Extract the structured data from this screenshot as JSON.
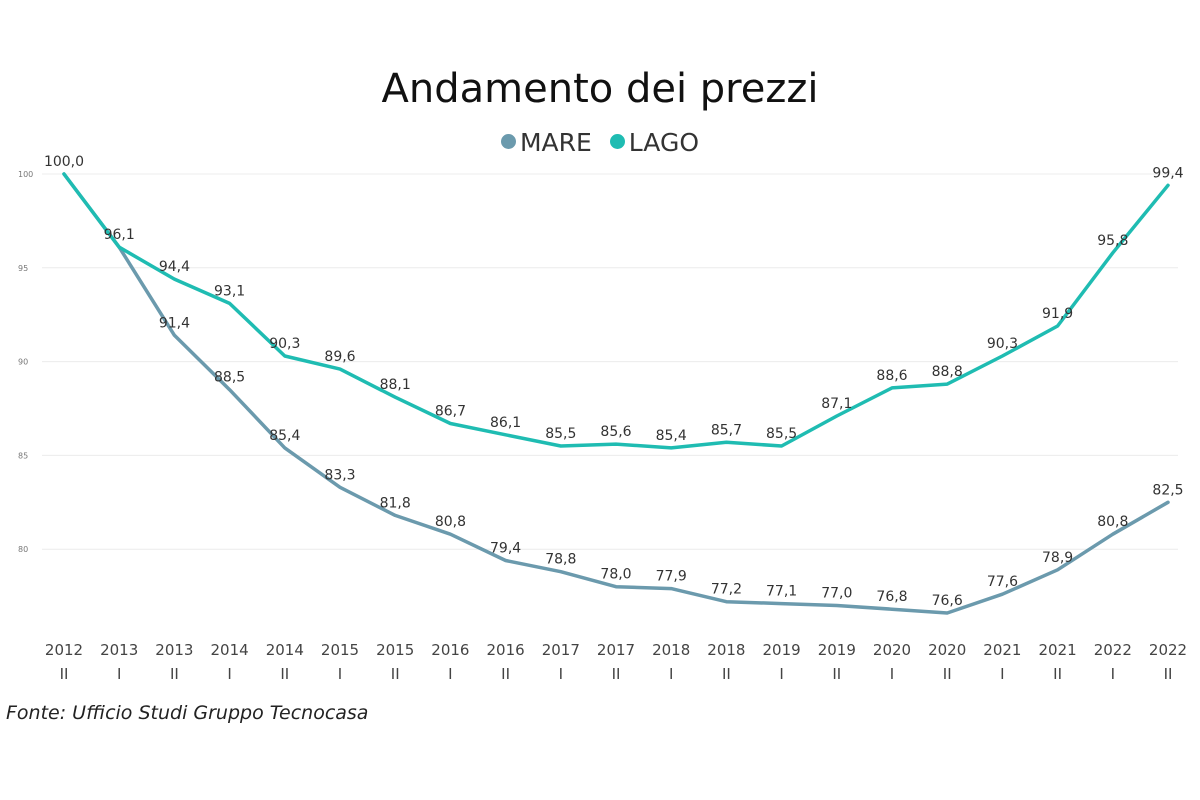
{
  "colors": {
    "mare": "#6b9aad",
    "lago": "#1fbcb2",
    "grid": "#ececec",
    "text": "#333333"
  },
  "source": "Fonte: Ufficio Studi Gruppo Tecnocasa",
  "chart_data": {
    "type": "line",
    "title": "Andamento dei prezzi",
    "xlabel": "",
    "ylabel": "",
    "ylim": [
      75,
      100
    ],
    "y_ticks": [
      "100",
      "95",
      "90",
      "85",
      "80"
    ],
    "grid": true,
    "legend_position": "top-center",
    "categories": [
      {
        "year": "2012",
        "half": "II"
      },
      {
        "year": "2013",
        "half": "I"
      },
      {
        "year": "2013",
        "half": "II"
      },
      {
        "year": "2014",
        "half": "I"
      },
      {
        "year": "2014",
        "half": "II"
      },
      {
        "year": "2015",
        "half": "I"
      },
      {
        "year": "2015",
        "half": "II"
      },
      {
        "year": "2016",
        "half": "I"
      },
      {
        "year": "2016",
        "half": "II"
      },
      {
        "year": "2017",
        "half": "I"
      },
      {
        "year": "2017",
        "half": "II"
      },
      {
        "year": "2018",
        "half": "I"
      },
      {
        "year": "2018",
        "half": "II"
      },
      {
        "year": "2019",
        "half": "I"
      },
      {
        "year": "2019",
        "half": "II"
      },
      {
        "year": "2020",
        "half": "I"
      },
      {
        "year": "2020",
        "half": "II"
      },
      {
        "year": "2021",
        "half": "I"
      },
      {
        "year": "2021",
        "half": "II"
      },
      {
        "year": "2022",
        "half": "I"
      },
      {
        "year": "2022",
        "half": "II"
      }
    ],
    "series": [
      {
        "name": "MARE",
        "values": [
          100.0,
          96.1,
          91.4,
          88.5,
          85.4,
          83.3,
          81.8,
          80.8,
          79.4,
          78.8,
          78.0,
          77.9,
          77.2,
          77.1,
          77.0,
          76.8,
          76.6,
          77.6,
          78.9,
          80.8,
          82.5
        ],
        "labels": [
          "",
          "",
          "91,4",
          "88,5",
          "85,4",
          "83,3",
          "81,8",
          "80,8",
          "79,4",
          "78,8",
          "78,0",
          "77,9",
          "77,2",
          "77,1",
          "77,0",
          "76,8",
          "76,6",
          "77,6",
          "78,9",
          "80,8",
          "82,5"
        ]
      },
      {
        "name": "LAGO",
        "values": [
          100.0,
          96.1,
          94.4,
          93.1,
          90.3,
          89.6,
          88.1,
          86.7,
          86.1,
          85.5,
          85.6,
          85.4,
          85.7,
          85.5,
          87.1,
          88.6,
          88.8,
          90.3,
          91.9,
          95.8,
          99.4
        ],
        "labels": [
          "100,0",
          "96,1",
          "94,4",
          "93,1",
          "90,3",
          "89,6",
          "88,1",
          "86,7",
          "86,1",
          "85,5",
          "85,6",
          "85,4",
          "85,7",
          "85,5",
          "87,1",
          "88,6",
          "88,8",
          "90,3",
          "91,9",
          "95,8",
          "99,4"
        ]
      }
    ]
  }
}
